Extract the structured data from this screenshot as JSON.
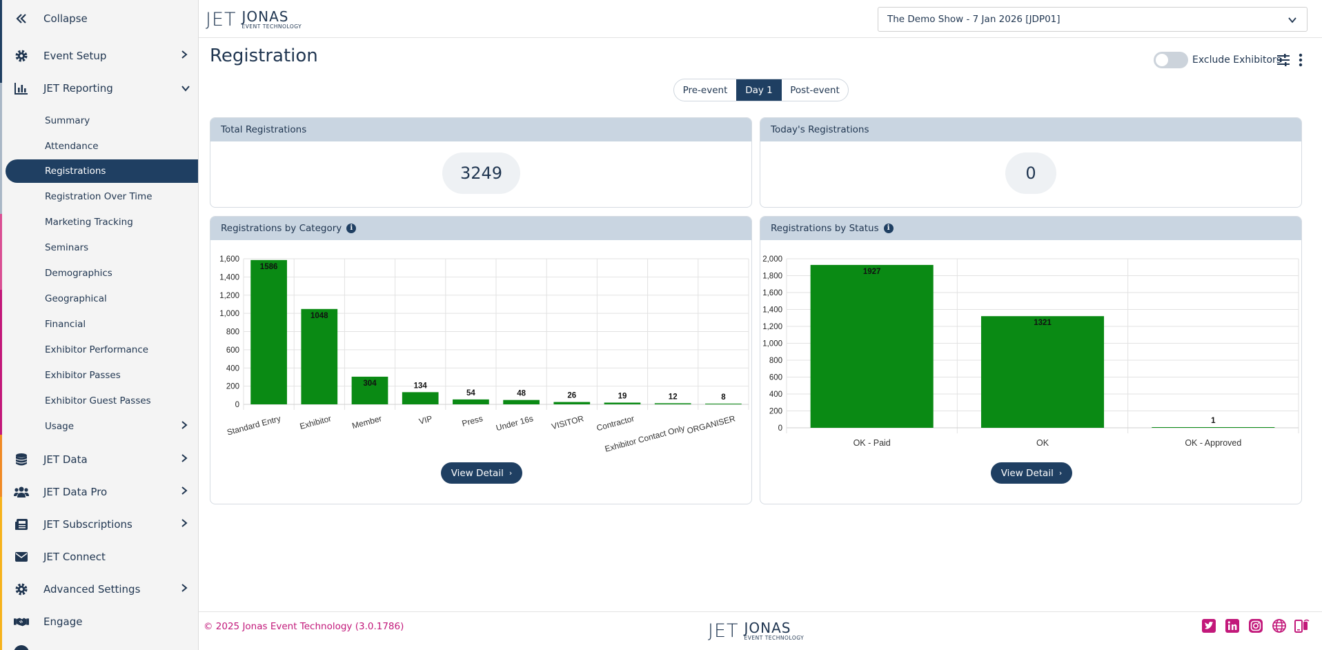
{
  "sidebar": {
    "collapse_label": "Collapse",
    "items": [
      {
        "label": "Event Setup",
        "icon": "gear-icon"
      },
      {
        "label": "JET Reporting",
        "icon": "bar-chart-icon"
      },
      {
        "label": "JET Data",
        "icon": "database-icon"
      },
      {
        "label": "JET Data Pro",
        "icon": "users-icon"
      },
      {
        "label": "JET Subscriptions",
        "icon": "newspaper-icon"
      },
      {
        "label": "JET Connect",
        "icon": "envelope-icon"
      },
      {
        "label": "Advanced Settings",
        "icon": "gear-icon"
      },
      {
        "label": "Engage",
        "icon": "handshake-icon"
      }
    ],
    "reporting_subitems": [
      "Summary",
      "Attendance",
      "Registrations",
      "Registration Over Time",
      "Marketing Tracking",
      "Seminars",
      "Demographics",
      "Geographical",
      "Financial",
      "Exhibitor Performance",
      "Exhibitor Passes",
      "Exhibitor Guest Passes",
      "Usage"
    ],
    "active_subitem": "Registrations",
    "accent_colors": [
      "#1f3f62",
      "#c2187a",
      "#e0446a",
      "#f08a24",
      "#f6b21b"
    ]
  },
  "header": {
    "logo": {
      "mark": "JET",
      "name": "JONAS",
      "tagline": "EVENT TECHNOLOGY"
    },
    "event_select_value": "The Demo Show - 7 Jan 2026 [JDP01]"
  },
  "page": {
    "title": "Registration",
    "exclude_exhibitors_label": "Exclude Exhibitors",
    "exclude_exhibitors_on": false,
    "tabs": [
      "Pre-event",
      "Day 1",
      "Post-event"
    ],
    "active_tab": "Day 1"
  },
  "cards": {
    "total": {
      "title": "Total Registrations",
      "value": "3249"
    },
    "today": {
      "title": "Today's Registrations",
      "value": "0"
    },
    "by_category": {
      "title": "Registrations by Category",
      "button": "View Detail"
    },
    "by_status": {
      "title": "Registrations by Status",
      "button": "View Detail"
    }
  },
  "chart_data": [
    {
      "type": "bar",
      "title": "Registrations by Category",
      "categories": [
        "Standard Entry",
        "Exhibitor",
        "Member",
        "VIP",
        "Press",
        "Under 16s",
        "VISITOR",
        "Contractor",
        "Exhibitor Contact Only",
        "ORGANISER"
      ],
      "values": [
        1586,
        1048,
        304,
        134,
        54,
        48,
        26,
        19,
        12,
        8
      ],
      "yticks": [
        "0",
        "200",
        "400",
        "600",
        "800",
        "1,000",
        "1,200",
        "1,400",
        "1,600"
      ],
      "ylim": [
        0,
        1600
      ],
      "grid": true,
      "color": "#0a8a14"
    },
    {
      "type": "bar",
      "title": "Registrations by Status",
      "categories": [
        "OK - Paid",
        "OK",
        "OK - Approved"
      ],
      "values": [
        1927,
        1321,
        1
      ],
      "yticks": [
        "0",
        "200",
        "400",
        "600",
        "800",
        "1,000",
        "1,200",
        "1,400",
        "1,600",
        "1,800",
        "2,000"
      ],
      "ylim": [
        0,
        2000
      ],
      "grid": true,
      "color": "#0a8a14"
    }
  ],
  "footer": {
    "copyright": "© 2025 Jonas Event Technology (3.0.1786)",
    "social_icons": [
      "twitter-icon",
      "linkedin-icon",
      "instagram-icon",
      "globe-icon",
      "mobile-icon"
    ],
    "brand_color": "#c2187a"
  }
}
